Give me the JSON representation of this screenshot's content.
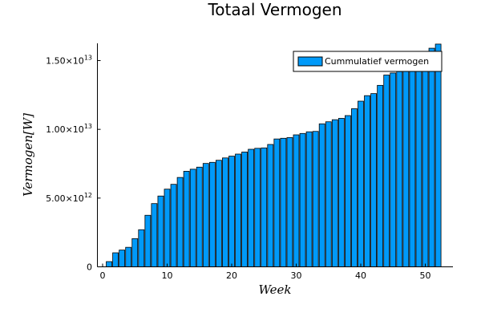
{
  "chart_data": {
    "type": "bar",
    "title": "Totaal Vermogen",
    "xlabel": "Week",
    "ylabel": "Vermogen[W]",
    "xlim": [
      0,
      53
    ],
    "ylim": [
      0,
      16200000000000.0
    ],
    "grid": false,
    "legend_position": "top-right",
    "bar_color": "#009AF9",
    "x_ticks": [
      {
        "value": 0,
        "label": "0"
      },
      {
        "value": 10,
        "label": "10"
      },
      {
        "value": 20,
        "label": "20"
      },
      {
        "value": 30,
        "label": "30"
      },
      {
        "value": 40,
        "label": "40"
      },
      {
        "value": 50,
        "label": "50"
      }
    ],
    "y_ticks": [
      {
        "value": 0,
        "label": "0",
        "mantissa": "",
        "exponent": ""
      },
      {
        "value": 5000000000000.0,
        "label": "5.00×10^12",
        "mantissa": "5.00×10",
        "exponent": "12"
      },
      {
        "value": 10000000000000.0,
        "label": "1.00×10^13",
        "mantissa": "1.00×10",
        "exponent": "13"
      },
      {
        "value": 15000000000000.0,
        "label": "1.50×10^13",
        "mantissa": "1.50×10",
        "exponent": "13"
      }
    ],
    "series": [
      {
        "name": "Cummulatief vermogen",
        "x": [
          1,
          2,
          3,
          4,
          5,
          6,
          7,
          8,
          9,
          10,
          11,
          12,
          13,
          14,
          15,
          16,
          17,
          18,
          19,
          20,
          21,
          22,
          23,
          24,
          25,
          26,
          27,
          28,
          29,
          30,
          31,
          32,
          33,
          34,
          35,
          36,
          37,
          38,
          39,
          40,
          41,
          42,
          43,
          44,
          45,
          46,
          47,
          48,
          49,
          50,
          51,
          52
        ],
        "values": [
          380000000000.0,
          1020000000000.0,
          1220000000000.0,
          1420000000000.0,
          2050000000000.0,
          2700000000000.0,
          3750000000000.0,
          4600000000000.0,
          5150000000000.0,
          5650000000000.0,
          6000000000000.0,
          6500000000000.0,
          6950000000000.0,
          7100000000000.0,
          7250000000000.0,
          7520000000000.0,
          7600000000000.0,
          7750000000000.0,
          7920000000000.0,
          8050000000000.0,
          8200000000000.0,
          8350000000000.0,
          8550000000000.0,
          8620000000000.0,
          8650000000000.0,
          8900000000000.0,
          9300000000000.0,
          9350000000000.0,
          9400000000000.0,
          9600000000000.0,
          9700000000000.0,
          9820000000000.0,
          9850000000000.0,
          10400000000000.0,
          10550000000000.0,
          10700000000000.0,
          10800000000000.0,
          11000000000000.0,
          11500000000000.0,
          12050000000000.0,
          12450000000000.0,
          12600000000000.0,
          13200000000000.0,
          13950000000000.0,
          14100000000000.0,
          14200000000000.0,
          14300000000000.0,
          14400000000000.0,
          14500000000000.0,
          14600000000000.0,
          15900000000000.0,
          16200000000000.0
        ]
      }
    ]
  }
}
